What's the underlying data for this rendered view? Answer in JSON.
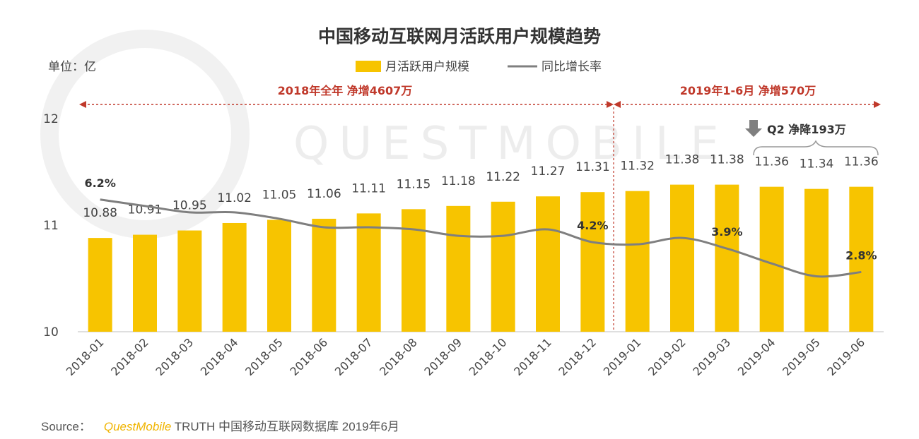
{
  "chart_data": {
    "type": "bar",
    "title": "中国移动互联网月活跃用户规模趋势",
    "unit_label": "单位：亿",
    "categories": [
      "2018-01",
      "2018-02",
      "2018-03",
      "2018-04",
      "2018-05",
      "2018-06",
      "2018-07",
      "2018-08",
      "2018-09",
      "2018-10",
      "2018-11",
      "2018-12",
      "2019-01",
      "2019-02",
      "2019-03",
      "2019-04",
      "2019-05",
      "2019-06"
    ],
    "series": [
      {
        "name": "月活跃用户规模",
        "type": "bar",
        "color": "#f7c400",
        "values": [
          10.88,
          10.91,
          10.95,
          11.02,
          11.05,
          11.06,
          11.11,
          11.15,
          11.18,
          11.22,
          11.27,
          11.31,
          11.32,
          11.38,
          11.38,
          11.36,
          11.34,
          11.36
        ]
      },
      {
        "name": "同比增长率",
        "type": "line",
        "color": "#7f7f7f",
        "values": [
          6.2,
          5.9,
          5.6,
          5.6,
          5.3,
          4.9,
          4.9,
          4.8,
          4.5,
          4.5,
          4.8,
          4.2,
          4.1,
          4.4,
          3.9,
          3.2,
          2.6,
          2.8
        ]
      }
    ],
    "value_labels": [
      "10.88",
      "10.91",
      "10.95",
      "11.02",
      "11.05",
      "11.06",
      "11.11",
      "11.15",
      "11.18",
      "11.22",
      "11.27",
      "11.31",
      "11.32",
      "11.38",
      "11.38",
      "11.36",
      "11.34",
      "11.36"
    ],
    "rate_labels": [
      {
        "index": 0,
        "text": "6.2%"
      },
      {
        "index": 11,
        "text": "4.2%"
      },
      {
        "index": 14,
        "text": "3.9%"
      },
      {
        "index": 17,
        "text": "2.8%"
      }
    ],
    "y_ticks": [
      "10",
      "11",
      "12"
    ],
    "ylim": [
      10,
      12
    ],
    "rate_range": [
      0,
      10
    ],
    "legend_position": "top-center",
    "grid": false,
    "annotations": {
      "period_2018": "2018年全年  净增4607万",
      "period_2019": "2019年1-6月  净增570万",
      "q2_note": "Q2 净降193万"
    }
  },
  "watermark": "QUESTMOBILE",
  "source": {
    "label": "Source：",
    "brand": "QuestMobile",
    "text": "TRUTH 中国移动互联网数据库 2019年6月"
  }
}
